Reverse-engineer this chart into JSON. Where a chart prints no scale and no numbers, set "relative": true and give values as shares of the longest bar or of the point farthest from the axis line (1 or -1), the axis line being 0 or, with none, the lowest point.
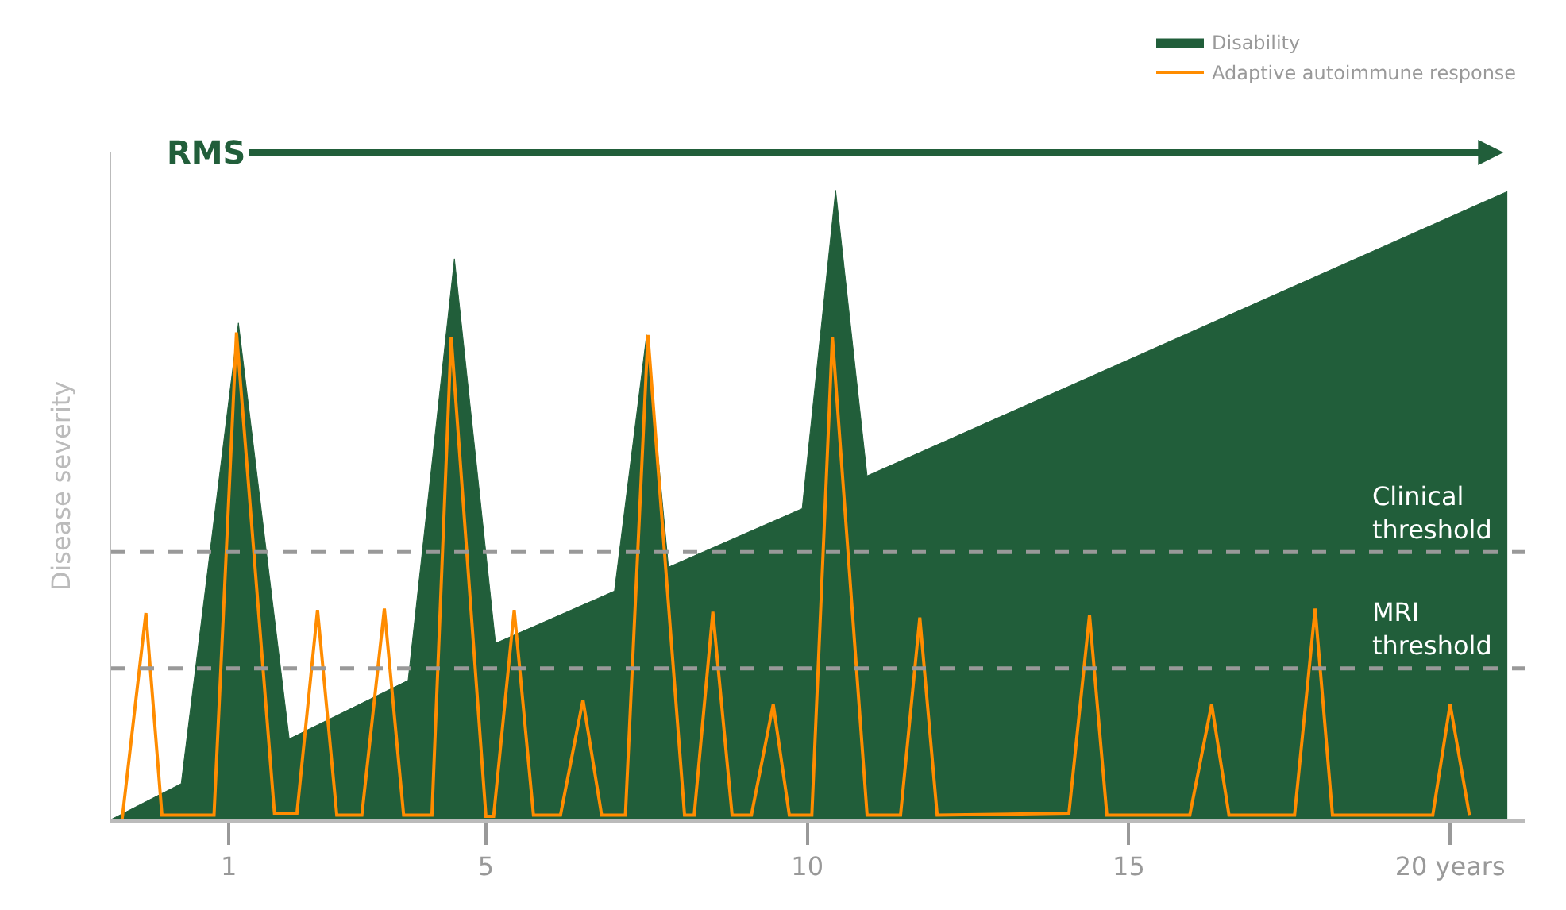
{
  "chart_data": {
    "type": "area",
    "relative": true,
    "ylabel": "Disease severity",
    "legend": "top right",
    "xlim": [
      -0.83,
      21.16
    ],
    "xticks": [
      1,
      5,
      10,
      15,
      {
        "value": 20,
        "label": "20 years"
      }
    ],
    "series": [
      {
        "name": "Disability",
        "color": "#215e3a",
        "x": [
          -0.83,
          0.26,
          1.15,
          1.94,
          3.79,
          4.51,
          5.15,
          7.0,
          7.5,
          7.84,
          9.92,
          10.44,
          10.93,
          20.89
        ],
        "values": [
          0,
          0.057,
          0.789,
          0.128,
          0.221,
          0.891,
          0.28,
          0.363,
          0.77,
          0.401,
          0.494,
          1.0,
          0.546,
          0.998
        ]
      },
      {
        "name": "Adaptive autoimmune response",
        "type": "line",
        "color": "#ff8c00",
        "line_style": "solid",
        "marker": "none",
        "x": [
          -0.66,
          -0.29,
          -0.04,
          0.77,
          1.12,
          1.71,
          2.06,
          2.38,
          2.68,
          3.07,
          3.42,
          3.72,
          4.16,
          4.46,
          5.0,
          5.12,
          5.44,
          5.74,
          6.16,
          6.51,
          6.8,
          7.17,
          7.52,
          8.09,
          8.24,
          8.53,
          8.83,
          9.13,
          9.47,
          9.72,
          10.07,
          10.39,
          10.93,
          11.45,
          11.75,
          12.02,
          14.07,
          14.39,
          14.66,
          15.95,
          16.29,
          16.56,
          17.58,
          17.9,
          18.17,
          19.73,
          20.0,
          20.3
        ],
        "values": [
          0,
          0.328,
          0.007,
          0.007,
          0.774,
          0.01,
          0.01,
          0.333,
          0.007,
          0.007,
          0.335,
          0.007,
          0.007,
          0.767,
          0.005,
          0.005,
          0.333,
          0.007,
          0.007,
          0.19,
          0.007,
          0.007,
          0.77,
          0.007,
          0.007,
          0.33,
          0.007,
          0.007,
          0.183,
          0.007,
          0.007,
          0.767,
          0.007,
          0.007,
          0.321,
          0.007,
          0.01,
          0.325,
          0.007,
          0.007,
          0.183,
          0.007,
          0.007,
          0.335,
          0.007,
          0.007,
          0.183,
          0.007
        ]
      }
    ],
    "ref_lines": [
      {
        "axis": "y",
        "value": 0.425,
        "label": "Clinical threshold",
        "color": "#999999",
        "line_style": "dashed"
      },
      {
        "axis": "y",
        "value": 0.24,
        "label": "MRI threshold",
        "color": "#999999",
        "line_style": "dashed"
      }
    ],
    "annotations": [
      "RMS"
    ]
  }
}
